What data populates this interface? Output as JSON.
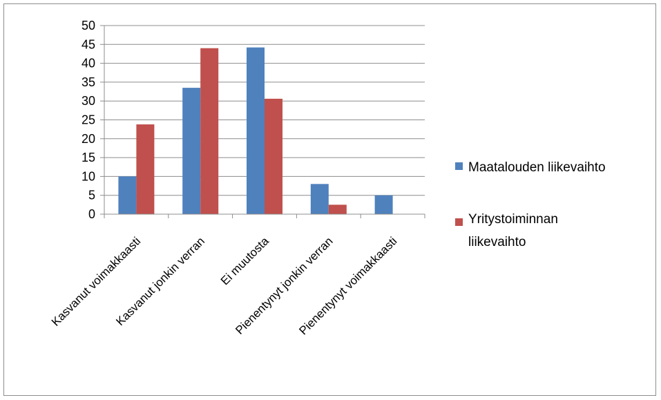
{
  "chart_data": {
    "type": "bar",
    "categories": [
      "Kasvanut voimakkaasti",
      "Kasvanut jonkin verran",
      "Ei muutosta",
      "Pienentynyt jonkin verran",
      "Pienentynyt voimakkaasti"
    ],
    "series": [
      {
        "name": "Maatalouden liikevaihto",
        "color": "#4f81bd",
        "values": [
          10,
          33.5,
          44.2,
          8,
          5
        ]
      },
      {
        "name": "Yritystoiminnan liikevaihto",
        "color": "#c0504d",
        "values": [
          23.8,
          44,
          30.6,
          2.5,
          0
        ]
      }
    ],
    "title": "",
    "xlabel": "",
    "ylabel": "",
    "ylim": [
      0,
      50
    ],
    "yticks": [
      "0",
      "5",
      "10",
      "15",
      "20",
      "25",
      "30",
      "35",
      "40",
      "45",
      "50"
    ],
    "grid": true,
    "legend_position": "right"
  },
  "legend": {
    "item1": "Maatalouden liikevaihto",
    "item2_line1": "Yritystoiminnan",
    "item2_line2": "liikevaihto"
  }
}
